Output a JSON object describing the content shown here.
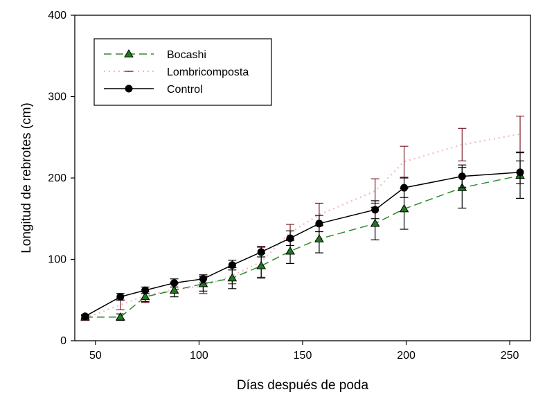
{
  "chart_data": {
    "type": "line",
    "title": "",
    "xlabel": "Días después de poda",
    "ylabel": "Longitud de rebrotes (cm)",
    "xlim": [
      40,
      260
    ],
    "ylim": [
      0,
      400
    ],
    "xticks": [
      50,
      100,
      150,
      200,
      250
    ],
    "yticks": [
      0,
      100,
      200,
      300,
      400
    ],
    "grid": false,
    "legend_position": "top-left",
    "series": [
      {
        "name": "Bocashi",
        "style": "dashed",
        "marker": "triangle",
        "line_color": "#2e8b2e",
        "marker_color": "#1f7a1f",
        "error_color": "#000000",
        "x": [
          45,
          62,
          74,
          88,
          102,
          116,
          130,
          144,
          158,
          185,
          199,
          227,
          255
        ],
        "y": [
          29,
          29,
          54,
          62,
          70,
          77,
          92,
          110,
          125,
          144,
          162,
          188,
          203
        ],
        "err": [
          2,
          4,
          6,
          8,
          9,
          13,
          15,
          15,
          17,
          20,
          25,
          25,
          28
        ]
      },
      {
        "name": "Lombricomposta",
        "style": "dotted",
        "marker": "none",
        "line_color": "#f0b8c8",
        "marker_color": "#7a1f2b",
        "error_color": "#7a1f2b",
        "x": [
          45,
          62,
          74,
          88,
          102,
          116,
          130,
          144,
          158,
          185,
          199,
          227,
          255
        ],
        "y": [
          28,
          44,
          55,
          63,
          67,
          80,
          97,
          133,
          155,
          184,
          220,
          241,
          254
        ],
        "err": [
          3,
          6,
          8,
          9,
          9,
          10,
          19,
          10,
          14,
          15,
          19,
          20,
          22
        ]
      },
      {
        "name": "Control",
        "style": "solid",
        "marker": "circle",
        "line_color": "#000000",
        "marker_color": "#000000",
        "error_color": "#000000",
        "x": [
          45,
          62,
          74,
          88,
          102,
          116,
          130,
          144,
          158,
          185,
          199,
          227,
          255
        ],
        "y": [
          30,
          54,
          62,
          71,
          76,
          93,
          109,
          126,
          144,
          161,
          188,
          202,
          207
        ],
        "err": [
          2,
          4,
          4,
          5,
          5,
          6,
          6,
          9,
          10,
          11,
          12,
          14,
          14
        ]
      }
    ]
  }
}
